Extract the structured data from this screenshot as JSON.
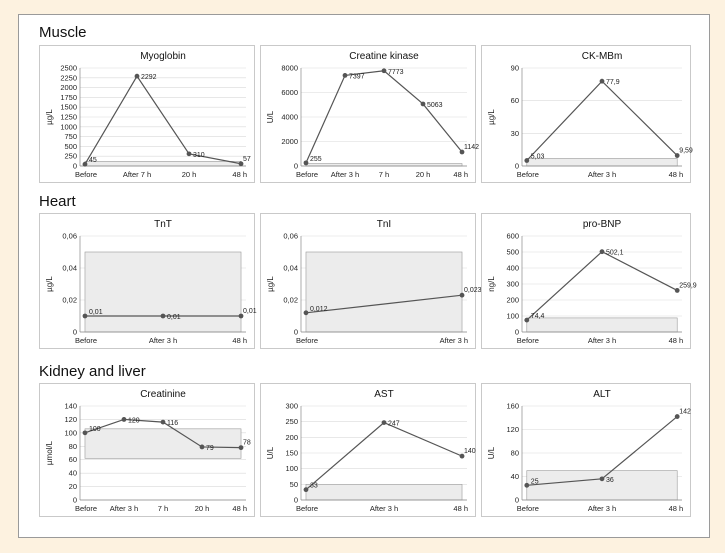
{
  "sections": [
    {
      "title": "Muscle"
    },
    {
      "title": "Heart"
    },
    {
      "title": "Kidney and liver"
    }
  ],
  "chart_data": [
    {
      "type": "line",
      "title": "Myoglobin",
      "ylabel": "µg/L",
      "ylim": [
        0,
        2500
      ],
      "yticks": [
        0,
        250,
        500,
        750,
        1000,
        1250,
        1500,
        1750,
        2000,
        2250,
        2500
      ],
      "categories": [
        "Before",
        "After 7 h",
        "20 h",
        "48 h"
      ],
      "x": [
        0,
        1,
        2,
        3
      ],
      "values": [
        45,
        2292,
        310,
        57
      ],
      "labels": [
        "45",
        "2292",
        "310",
        "57"
      ],
      "range": [
        0,
        120
      ],
      "range_x": [
        0,
        3
      ]
    },
    {
      "type": "line",
      "title": "Creatine kinase",
      "ylabel": "U/L",
      "ylim": [
        0,
        8000
      ],
      "yticks": [
        0,
        2000,
        4000,
        6000,
        8000
      ],
      "categories": [
        "Before",
        "After 3 h",
        "7 h",
        "20 h",
        "48 h"
      ],
      "x": [
        0,
        1,
        2,
        3,
        4
      ],
      "values": [
        255,
        7397,
        7773,
        5063,
        1142
      ],
      "labels": [
        "255",
        "7397",
        "7773",
        "5063",
        "1142"
      ],
      "range": [
        0,
        200
      ],
      "range_x": [
        0,
        4
      ]
    },
    {
      "type": "line",
      "title": "CK-MBm",
      "ylabel": "µg/L",
      "ylim": [
        0,
        90
      ],
      "yticks": [
        0,
        30,
        60,
        90
      ],
      "categories": [
        "Before",
        "After 3 h",
        "48 h"
      ],
      "x": [
        0,
        1,
        2
      ],
      "values": [
        5.03,
        77.9,
        9.59
      ],
      "labels": [
        "5,03",
        "77,9",
        "9,59"
      ],
      "range": [
        0,
        7
      ],
      "range_x": [
        0,
        2
      ]
    },
    {
      "type": "line",
      "title": "TnT",
      "ylabel": "µg/L",
      "ylim": [
        0,
        0.06
      ],
      "yticks": [
        0,
        0.02,
        0.04,
        0.06
      ],
      "ytick_labels": [
        "0",
        "0,02",
        "0,04",
        "0,06"
      ],
      "categories": [
        "Before",
        "After 3 h",
        "48 h"
      ],
      "x": [
        0,
        1,
        2
      ],
      "values": [
        0.01,
        0.01,
        0.01
      ],
      "labels": [
        "0,01",
        "0,01",
        "0,01"
      ],
      "range": [
        0,
        0.05
      ],
      "range_x": [
        0,
        2
      ]
    },
    {
      "type": "line",
      "title": "TnI",
      "ylabel": "µg/L",
      "ylim": [
        0,
        0.06
      ],
      "yticks": [
        0,
        0.02,
        0.04,
        0.06
      ],
      "ytick_labels": [
        "0",
        "0,02",
        "0,04",
        "0,06"
      ],
      "categories": [
        "Before",
        "After 3 h"
      ],
      "x": [
        0,
        1
      ],
      "values": [
        0.012,
        0.023
      ],
      "labels": [
        "0,012",
        "0,023"
      ],
      "range": [
        0,
        0.05
      ],
      "range_x": [
        0,
        1
      ]
    },
    {
      "type": "line",
      "title": "pro-BNP",
      "ylabel": "ng/L",
      "ylim": [
        0,
        600
      ],
      "yticks": [
        0,
        100,
        200,
        300,
        400,
        500,
        600
      ],
      "categories": [
        "Before",
        "After 3 h",
        "48 h"
      ],
      "x": [
        0,
        1,
        2
      ],
      "values": [
        74.4,
        502.1,
        259.9
      ],
      "labels": [
        "74,4",
        "502,1",
        "259,9"
      ],
      "range": [
        0,
        88
      ],
      "range_x": [
        0,
        2
      ]
    },
    {
      "type": "line",
      "title": "Creatinine",
      "ylabel": "µmol/L",
      "ylim": [
        0,
        140
      ],
      "yticks": [
        0,
        20,
        40,
        60,
        80,
        100,
        120,
        140
      ],
      "categories": [
        "Before",
        "After 3 h",
        "7 h",
        "20 h",
        "48 h"
      ],
      "x": [
        0,
        1,
        2,
        3,
        4
      ],
      "values": [
        100,
        120,
        116,
        79,
        78
      ],
      "labels": [
        "100",
        "120",
        "116",
        "79",
        "78"
      ],
      "range": [
        62,
        106
      ],
      "range_x": [
        0,
        4
      ]
    },
    {
      "type": "line",
      "title": "AST",
      "ylabel": "U/L",
      "ylim": [
        0,
        300
      ],
      "yticks": [
        0,
        50,
        100,
        150,
        200,
        250,
        300
      ],
      "categories": [
        "Before",
        "After 3 h",
        "48 h"
      ],
      "x": [
        0,
        1,
        2
      ],
      "values": [
        33,
        247,
        140
      ],
      "labels": [
        "33",
        "247",
        "140"
      ],
      "range": [
        0,
        50
      ],
      "range_x": [
        0,
        2
      ]
    },
    {
      "type": "line",
      "title": "ALT",
      "ylabel": "U/L",
      "ylim": [
        0,
        160
      ],
      "yticks": [
        0,
        40,
        80,
        120,
        160
      ],
      "categories": [
        "Before",
        "After 3 h",
        "48 h"
      ],
      "x": [
        0,
        1,
        2
      ],
      "values": [
        25,
        36,
        142
      ],
      "labels": [
        "25",
        "36",
        "142"
      ],
      "range": [
        0,
        50
      ],
      "range_x": [
        0,
        2
      ]
    }
  ]
}
